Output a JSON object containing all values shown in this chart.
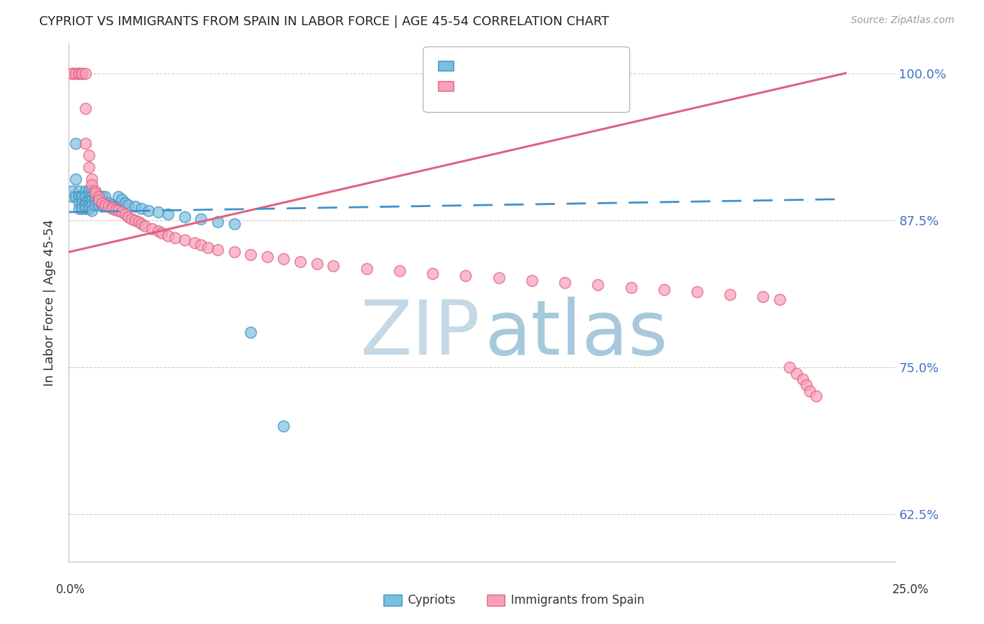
{
  "title": "CYPRIOT VS IMMIGRANTS FROM SPAIN IN LABOR FORCE | AGE 45-54 CORRELATION CHART",
  "source_text": "Source: ZipAtlas.com",
  "ylabel": "In Labor Force | Age 45-54",
  "xmin": 0.0,
  "xmax": 0.25,
  "ymin": 0.585,
  "ymax": 1.025,
  "yticks": [
    0.625,
    0.75,
    0.875,
    1.0
  ],
  "ytick_labels": [
    "62.5%",
    "75.0%",
    "87.5%",
    "100.0%"
  ],
  "cypriot_color": "#7bbfe0",
  "spain_color": "#f8a0b8",
  "cypriot_edge_color": "#4090c0",
  "spain_edge_color": "#e06080",
  "cypriot_trend_color": "#4090c8",
  "spain_trend_color": "#e06080",
  "watermark_zip_color": "#c8dce8",
  "watermark_atlas_color": "#a8c8e0",
  "cypriot_x": [
    0.001,
    0.001,
    0.002,
    0.002,
    0.002,
    0.003,
    0.003,
    0.003,
    0.003,
    0.004,
    0.004,
    0.004,
    0.004,
    0.005,
    0.005,
    0.005,
    0.005,
    0.005,
    0.005,
    0.006,
    0.006,
    0.006,
    0.006,
    0.006,
    0.007,
    0.007,
    0.007,
    0.007,
    0.007,
    0.008,
    0.008,
    0.008,
    0.009,
    0.009,
    0.009,
    0.01,
    0.01,
    0.011,
    0.012,
    0.013,
    0.014,
    0.015,
    0.016,
    0.017,
    0.018,
    0.02,
    0.022,
    0.024,
    0.027,
    0.03,
    0.035,
    0.04,
    0.045,
    0.05,
    0.055,
    0.065
  ],
  "cypriot_y": [
    0.895,
    0.9,
    0.94,
    0.91,
    0.895,
    0.9,
    0.895,
    0.89,
    0.885,
    0.895,
    0.895,
    0.89,
    0.885,
    0.9,
    0.895,
    0.895,
    0.89,
    0.888,
    0.885,
    0.9,
    0.895,
    0.892,
    0.888,
    0.885,
    0.9,
    0.895,
    0.892,
    0.888,
    0.883,
    0.895,
    0.892,
    0.888,
    0.895,
    0.892,
    0.888,
    0.895,
    0.888,
    0.895,
    0.89,
    0.888,
    0.887,
    0.895,
    0.893,
    0.89,
    0.888,
    0.887,
    0.885,
    0.883,
    0.882,
    0.88,
    0.878,
    0.876,
    0.874,
    0.872,
    0.78,
    0.7
  ],
  "spain_x": [
    0.001,
    0.001,
    0.002,
    0.003,
    0.003,
    0.004,
    0.004,
    0.005,
    0.005,
    0.005,
    0.006,
    0.006,
    0.007,
    0.007,
    0.008,
    0.008,
    0.009,
    0.009,
    0.01,
    0.011,
    0.012,
    0.013,
    0.013,
    0.014,
    0.015,
    0.016,
    0.017,
    0.018,
    0.019,
    0.02,
    0.021,
    0.022,
    0.023,
    0.025,
    0.027,
    0.028,
    0.03,
    0.032,
    0.035,
    0.038,
    0.04,
    0.042,
    0.045,
    0.05,
    0.055,
    0.06,
    0.065,
    0.07,
    0.075,
    0.08,
    0.09,
    0.1,
    0.11,
    0.12,
    0.13,
    0.14,
    0.15,
    0.16,
    0.17,
    0.18,
    0.19,
    0.2,
    0.21,
    0.215,
    0.218,
    0.22,
    0.222,
    0.223,
    0.224,
    0.226
  ],
  "spain_y": [
    1.0,
    1.0,
    1.0,
    1.0,
    1.0,
    1.0,
    1.0,
    1.0,
    0.97,
    0.94,
    0.93,
    0.92,
    0.91,
    0.905,
    0.9,
    0.898,
    0.895,
    0.892,
    0.89,
    0.888,
    0.887,
    0.886,
    0.885,
    0.884,
    0.883,
    0.882,
    0.88,
    0.878,
    0.876,
    0.875,
    0.874,
    0.872,
    0.87,
    0.868,
    0.866,
    0.864,
    0.862,
    0.86,
    0.858,
    0.856,
    0.854,
    0.852,
    0.85,
    0.848,
    0.846,
    0.844,
    0.842,
    0.84,
    0.838,
    0.836,
    0.834,
    0.832,
    0.83,
    0.828,
    0.826,
    0.824,
    0.822,
    0.82,
    0.818,
    0.816,
    0.814,
    0.812,
    0.81,
    0.808,
    0.75,
    0.745,
    0.74,
    0.735,
    0.73,
    0.726
  ],
  "cyp_trend_x": [
    0.0,
    0.235
  ],
  "cyp_trend_y": [
    0.882,
    0.893
  ],
  "spa_trend_x": [
    0.0,
    0.235
  ],
  "spa_trend_y": [
    0.848,
    1.0
  ]
}
